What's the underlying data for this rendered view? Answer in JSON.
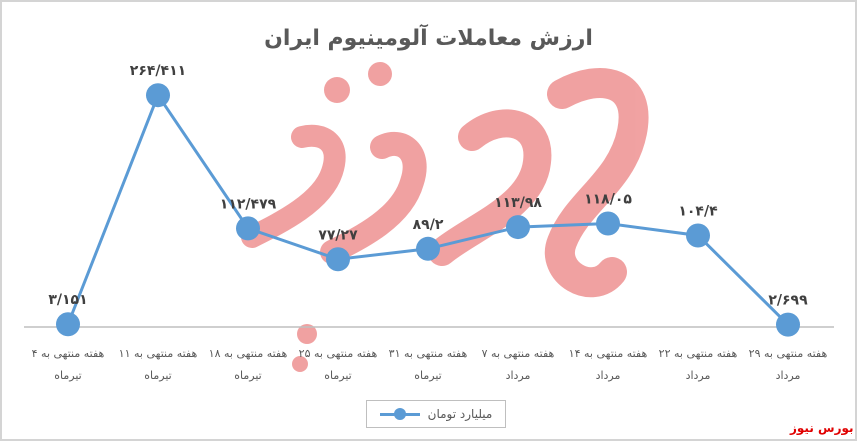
{
  "chart_data": {
    "type": "line",
    "title": "ارزش معاملات آلومینیوم ایران",
    "xlabel": "",
    "ylabel": "",
    "ylim": [
      0,
      300
    ],
    "grid": false,
    "legend_position": "bottom",
    "categories": [
      [
        "هفته منتهی به ۴",
        "تیرماه"
      ],
      [
        "هفته منتهی به ۱۱",
        "تیرماه"
      ],
      [
        "هفته منتهی به ۱۸",
        "تیرماه"
      ],
      [
        "هفته منتهی به ۲۵",
        "تیرماه"
      ],
      [
        "هفته منتهی به ۳۱",
        "تیرماه"
      ],
      [
        "هفته منتهی به ۷",
        "مرداد"
      ],
      [
        "هفته منتهی به ۱۴",
        "مرداد"
      ],
      [
        "هفته منتهی به ۲۲",
        "مرداد"
      ],
      [
        "هفته منتهی به ۲۹",
        "مرداد"
      ]
    ],
    "series": [
      {
        "name": "میلیارد تومان",
        "color": "#5b9bd5",
        "values": [
          3.151,
          264.411,
          112.479,
          77.27,
          89.2,
          113.98,
          118.05,
          104.4,
          2.699
        ],
        "data_labels": [
          "۳/۱۵۱",
          "۲۶۴/۴۱۱",
          "۱۱۲/۴۷۹",
          "۷۷/۲۷",
          "۸۹/۲",
          "۱۱۳/۹۸",
          "۱۱۸/۰۵",
          "۱۰۴/۴",
          "۲/۶۹۹"
        ]
      }
    ]
  },
  "watermark": {
    "logo_text": "بورس نیوز",
    "corner_text": "بورس نیوز",
    "color": "#e00000"
  }
}
